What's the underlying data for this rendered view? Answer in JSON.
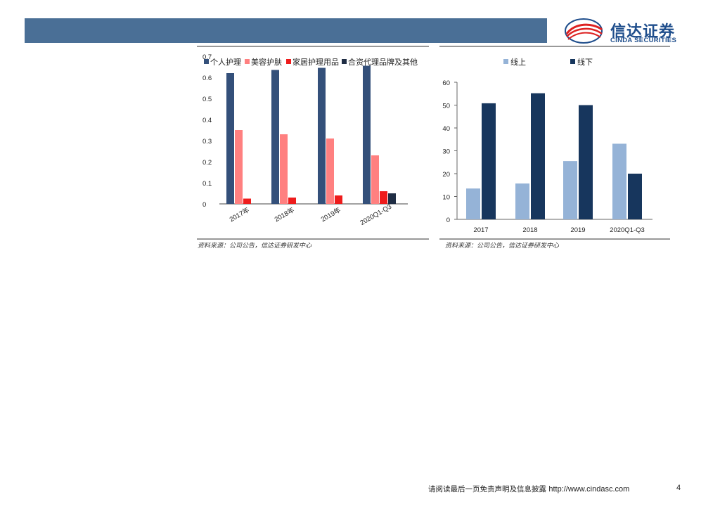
{
  "logo": {
    "cn": "信达证券",
    "en": "CINDA SECURITIES"
  },
  "chart_data": [
    {
      "type": "bar",
      "categories": [
        "2017年",
        "2018年",
        "2019年",
        "2020Q1-Q3"
      ],
      "series": [
        {
          "name": "个人护理",
          "color": "#34507a",
          "values": [
            0.62,
            0.635,
            0.645,
            0.655
          ]
        },
        {
          "name": "美容护肤",
          "color": "#ff8080",
          "values": [
            0.35,
            0.33,
            0.31,
            0.23
          ]
        },
        {
          "name": "家居护理用品",
          "color": "#ee1c1c",
          "values": [
            0.025,
            0.03,
            0.04,
            0.06
          ]
        },
        {
          "name": "合资代理品牌及其他",
          "color": "#1f2d44",
          "values": [
            0,
            0,
            0,
            0.05
          ]
        }
      ],
      "ylim": [
        0,
        0.7
      ],
      "yticks": [
        "0",
        "0.1",
        "0.2",
        "0.3",
        "0.4",
        "0.5",
        "0.6",
        "0.7"
      ],
      "legend": "top",
      "source": "资料来源：公司公告，信达证券研发中心"
    },
    {
      "type": "bar",
      "categories": [
        "2017",
        "2018",
        "2019",
        "2020Q1-Q3"
      ],
      "series": [
        {
          "name": "线上",
          "color": "#95b3d7",
          "values": [
            13.5,
            15.7,
            25.5,
            33.1
          ]
        },
        {
          "name": "线下",
          "color": "#17365d",
          "values": [
            50.8,
            55.2,
            50.0,
            20.0
          ]
        }
      ],
      "ylim": [
        0,
        60
      ],
      "yticks": [
        "0",
        "10",
        "20",
        "30",
        "40",
        "50",
        "60"
      ],
      "legend": "top",
      "source": "资料来源：公司公告，信达证券研发中心"
    }
  ],
  "footer": {
    "text": "请阅读最后一页免责声明及信息披露",
    "url": "http://www.cindasc.com",
    "page": "4"
  }
}
